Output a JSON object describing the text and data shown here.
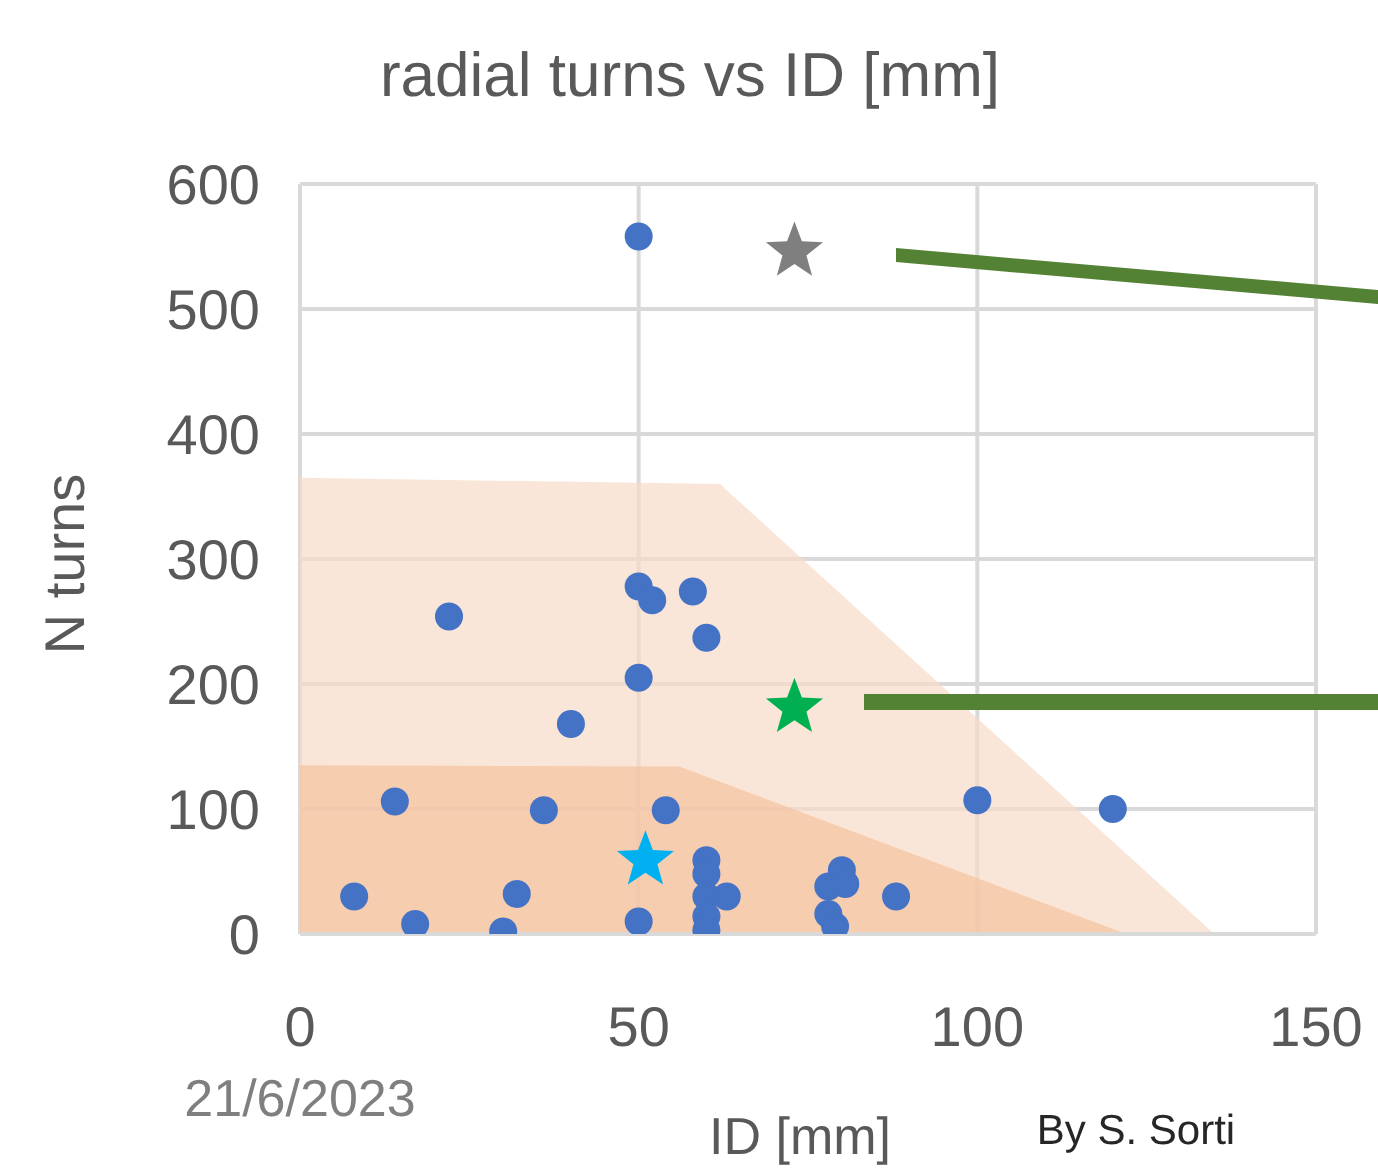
{
  "chart_data": {
    "type": "scatter",
    "title": "radial turns vs ID [mm]",
    "xlabel": "ID [mm]",
    "ylabel": "N turns",
    "xlim": [
      0,
      150
    ],
    "xticks": [
      0,
      50,
      100,
      150
    ],
    "ylim": [
      0,
      600
    ],
    "yticks": [
      0,
      100,
      200,
      300,
      400,
      500,
      600
    ],
    "grid": true,
    "legend": false,
    "series": [
      {
        "color": "#4472c4",
        "marker": "circle",
        "x": [
          50,
          22,
          50,
          52,
          58,
          60,
          50,
          40,
          14,
          36,
          54,
          100,
          120,
          8,
          17,
          32,
          30,
          50,
          60,
          60,
          60,
          63,
          60,
          60,
          78,
          78,
          80,
          80.5,
          79,
          88
        ],
        "values": [
          558,
          254,
          278,
          267,
          274,
          237,
          205,
          168,
          106,
          99,
          99,
          107,
          100,
          30,
          8,
          32,
          2,
          10,
          59,
          48,
          30,
          30,
          14,
          3,
          38,
          16,
          51,
          40,
          6,
          30
        ]
      },
      {
        "type": "area",
        "color": "#f8dcc8",
        "x": [
          0,
          62,
          135
        ],
        "values": [
          365,
          360,
          0
        ]
      },
      {
        "type": "area",
        "color": "#f4c29e",
        "x": [
          0,
          56,
          122
        ],
        "values": [
          135,
          134,
          0
        ]
      },
      {
        "type": "scatter",
        "color": "#7f7f7f",
        "marker": "star",
        "x": [
          73
        ],
        "values": [
          546
        ]
      },
      {
        "type": "scatter",
        "color": "#00b050",
        "marker": "star",
        "x": [
          73
        ],
        "values": [
          181
        ]
      },
      {
        "type": "scatter",
        "color": "#00b0f0",
        "marker": "star",
        "x": [
          51
        ],
        "values": [
          59
        ]
      }
    ],
    "annotations": [
      "21/6/2023",
      "By S. Sorti"
    ]
  }
}
